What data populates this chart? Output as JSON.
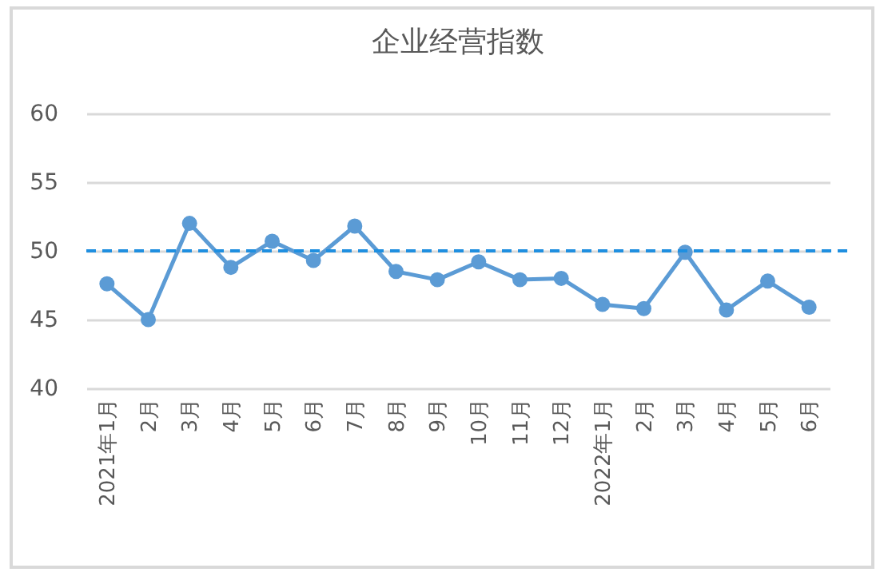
{
  "chart_data": {
    "type": "line",
    "title": "企业经营指数",
    "categories": [
      "2021年1月",
      "2月",
      "3月",
      "4月",
      "5月",
      "6月",
      "7月",
      "8月",
      "9月",
      "10月",
      "11月",
      "12月",
      "2022年1月",
      "2月",
      "3月",
      "4月",
      "5月",
      "6月"
    ],
    "series": [
      {
        "color": "#5b9bd5",
        "values": [
          47.6,
          45.0,
          52.0,
          48.8,
          50.7,
          49.3,
          51.8,
          48.5,
          47.9,
          49.2,
          47.9,
          48.0,
          46.1,
          45.8,
          49.9,
          45.7,
          47.8,
          45.9
        ]
      }
    ],
    "ylim": [
      40,
      60
    ],
    "yticks": [
      40,
      45,
      50,
      55,
      60
    ],
    "grid": "y",
    "marker": "circle",
    "line_style": "solid",
    "ref_lines": [
      {
        "axis": "y",
        "value": 50,
        "label": null,
        "color": "#1f8fe0",
        "line_style": "dashed"
      }
    ]
  }
}
